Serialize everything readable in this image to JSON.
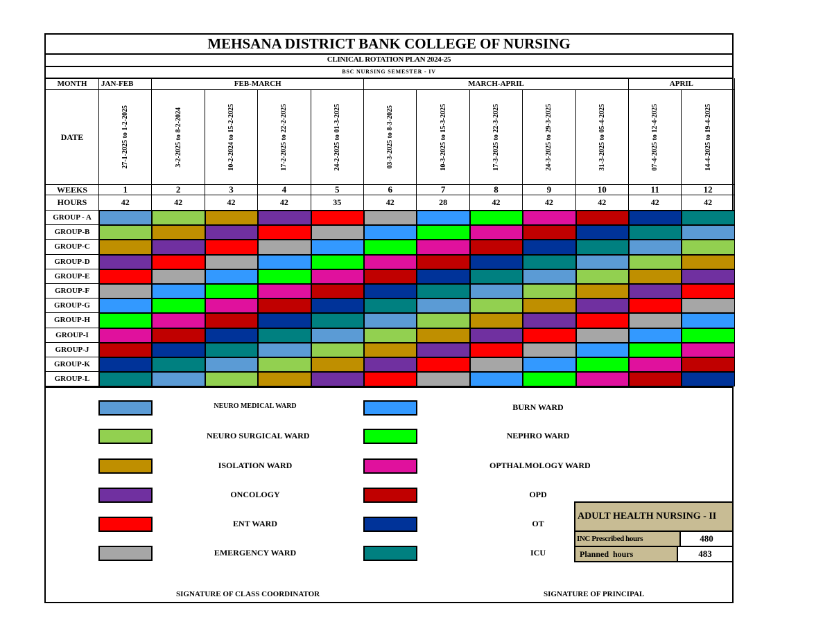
{
  "title": "MEHSANA DISTRICT BANK COLLEGE OF NURSING",
  "subtitle": "CLINICAL ROTATION PLAN 2024-25",
  "semester": "BSC NURSING SEMESTER - IV",
  "labels": {
    "month": "MONTH",
    "date": "DATE",
    "weeks": "WEEKS",
    "hours": "HOURS"
  },
  "months": [
    {
      "label": "JAN-FEB",
      "span": 1
    },
    {
      "label": "FEB-MARCH",
      "span": 4
    },
    {
      "label": "MARCH-APRIL",
      "span": 5
    },
    {
      "label": "APRIL",
      "span": 2
    }
  ],
  "dates": [
    "27-1-2025 to 1-2-2025",
    "3-2-2025 to 8-2-2024",
    "10-2-2024 to 15-2-2025",
    "17-2-2025 to 22-2-2025",
    "24-2-2025 to 01-3-2025",
    "03-3-2025 to 8-3-2025",
    "10-3-2025 to 15-3-2025",
    "17-3-2025 to 22-3-2025",
    "24-3-2025 to 29-3-2025",
    "31-3-2025 to 05-4-2025",
    "07-4-2025 to 12-4-2025",
    "14-4-2025 to 19-4-2025"
  ],
  "weeks": [
    "1",
    "2",
    "3",
    "4",
    "5",
    "6",
    "7",
    "8",
    "9",
    "10",
    "11",
    "12"
  ],
  "hours": [
    "42",
    "42",
    "42",
    "42",
    "35",
    "42",
    "28",
    "42",
    "42",
    "42",
    "42",
    "42"
  ],
  "wards": [
    {
      "key": "neuro_medical",
      "label": "NEURO MEDICAL WARD",
      "color": "#5b9bd5"
    },
    {
      "key": "neuro_surgical",
      "label": "NEURO SURGICAL WARD",
      "color": "#92d050"
    },
    {
      "key": "isolation",
      "label": "ISOLATION WARD",
      "color": "#bf8f00"
    },
    {
      "key": "oncology",
      "label": "ONCOLOGY",
      "color": "#7030a0"
    },
    {
      "key": "ent",
      "label": "ENT WARD",
      "color": "#ff0000"
    },
    {
      "key": "emergency",
      "label": "EMERGENCY WARD",
      "color": "#a6a6a6"
    },
    {
      "key": "burn",
      "label": "BURN WARD",
      "color": "#3399ff"
    },
    {
      "key": "nephro",
      "label": "NEPHRO WARD",
      "color": "#00ff00"
    },
    {
      "key": "opthalmology",
      "label": "OPTHALMOLOGY WARD",
      "color": "#e0119d"
    },
    {
      "key": "opd",
      "label": "OPD",
      "color": "#c00000"
    },
    {
      "key": "ot",
      "label": "OT",
      "color": "#003399"
    },
    {
      "key": "icu",
      "label": "ICU",
      "color": "#008080"
    }
  ],
  "groups": [
    {
      "name": "GROUP - A",
      "rotation": [
        "neuro_medical",
        "neuro_surgical",
        "isolation",
        "oncology",
        "ent",
        "emergency",
        "burn",
        "nephro",
        "opthalmology",
        "opd",
        "ot",
        "icu"
      ]
    },
    {
      "name": "GROUP-B",
      "rotation": [
        "neuro_surgical",
        "isolation",
        "oncology",
        "ent",
        "emergency",
        "burn",
        "nephro",
        "opthalmology",
        "opd",
        "ot",
        "icu",
        "neuro_medical"
      ]
    },
    {
      "name": "GROUP-C",
      "rotation": [
        "isolation",
        "oncology",
        "ent",
        "emergency",
        "burn",
        "nephro",
        "opthalmology",
        "opd",
        "ot",
        "icu",
        "neuro_medical",
        "neuro_surgical"
      ]
    },
    {
      "name": "GROUP-D",
      "rotation": [
        "oncology",
        "ent",
        "emergency",
        "burn",
        "nephro",
        "opthalmology",
        "opd",
        "ot",
        "icu",
        "neuro_medical",
        "neuro_surgical",
        "isolation"
      ]
    },
    {
      "name": "GROUP-E",
      "rotation": [
        "ent",
        "emergency",
        "burn",
        "nephro",
        "opthalmology",
        "opd",
        "ot",
        "icu",
        "neuro_medical",
        "neuro_surgical",
        "isolation",
        "oncology"
      ]
    },
    {
      "name": "GROUP-F",
      "rotation": [
        "emergency",
        "burn",
        "nephro",
        "opthalmology",
        "opd",
        "ot",
        "icu",
        "neuro_medical",
        "neuro_surgical",
        "isolation",
        "oncology",
        "ent"
      ]
    },
    {
      "name": "GROUP-G",
      "rotation": [
        "burn",
        "nephro",
        "opthalmology",
        "opd",
        "ot",
        "icu",
        "neuro_medical",
        "neuro_surgical",
        "isolation",
        "oncology",
        "ent",
        "emergency"
      ]
    },
    {
      "name": "GROUP-H",
      "rotation": [
        "nephro",
        "opthalmology",
        "opd",
        "ot",
        "icu",
        "neuro_medical",
        "neuro_surgical",
        "isolation",
        "oncology",
        "ent",
        "emergency",
        "burn"
      ]
    },
    {
      "name": "GROUP-I",
      "rotation": [
        "opthalmology",
        "opd",
        "ot",
        "icu",
        "neuro_medical",
        "neuro_surgical",
        "isolation",
        "oncology",
        "ent",
        "emergency",
        "burn",
        "nephro"
      ]
    },
    {
      "name": "GROUP-J",
      "rotation": [
        "opd",
        "ot",
        "icu",
        "neuro_medical",
        "neuro_surgical",
        "isolation",
        "oncology",
        "ent",
        "emergency",
        "burn",
        "nephro",
        "opthalmology"
      ]
    },
    {
      "name": "GROUP-K",
      "rotation": [
        "ot",
        "icu",
        "neuro_medical",
        "neuro_surgical",
        "isolation",
        "oncology",
        "ent",
        "emergency",
        "burn",
        "nephro",
        "opthalmology",
        "opd"
      ]
    },
    {
      "name": "GROUP-L",
      "rotation": [
        "icu",
        "neuro_medical",
        "neuro_surgical",
        "isolation",
        "oncology",
        "ent",
        "emergency",
        "burn",
        "nephro",
        "opthalmology",
        "opd",
        "ot"
      ]
    }
  ],
  "summary": {
    "title": "ADULT HEALTH NURSING - II",
    "prescribed_label": "INC Prescribed hours",
    "prescribed_value": "480",
    "planned_label": "Planned  hours",
    "planned_value": "483"
  },
  "signatures": {
    "coordinator": "SIGNATURE OF CLASS COORDINATOR",
    "principal": "SIGNATURE OF PRINCIPAL"
  }
}
